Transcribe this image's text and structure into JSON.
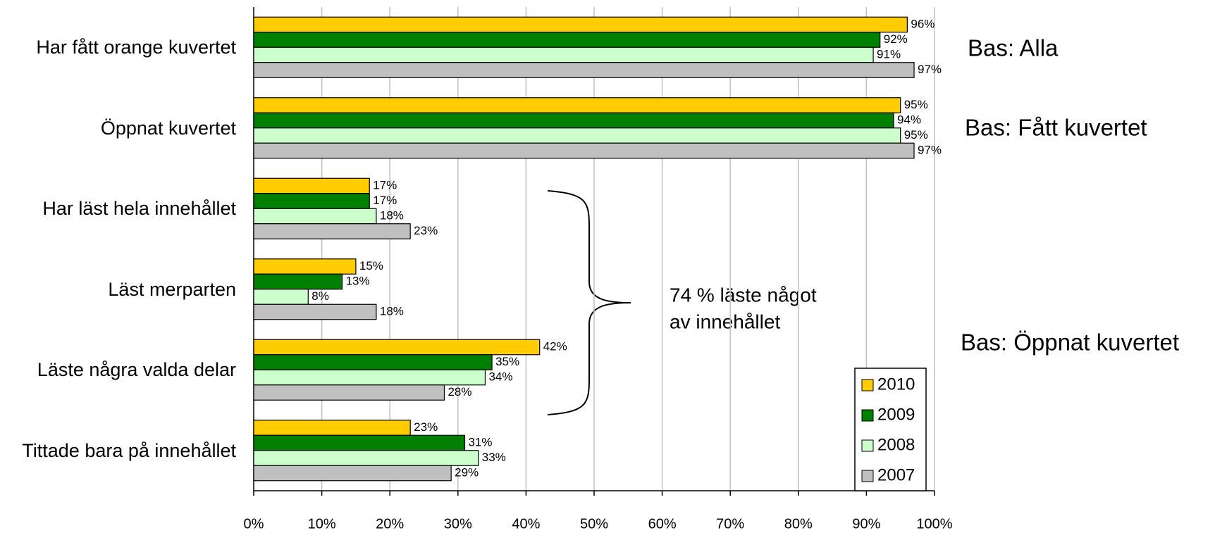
{
  "chart_data": {
    "type": "bar",
    "orientation": "horizontal",
    "categories": [
      "Har fått orange kuvertet",
      "Öppnat kuvertet",
      "Har läst hela innehållet",
      "Läst merparten",
      "Läste några valda delar",
      "Tittade bara på innehållet"
    ],
    "series": [
      {
        "name": "2010",
        "color": "#ffcc00",
        "values": [
          96,
          95,
          17,
          15,
          42,
          23
        ],
        "value_labels": [
          "96%",
          "95%",
          "17%",
          "15%",
          "42%",
          "23%"
        ]
      },
      {
        "name": "2009",
        "color": "#008000",
        "values": [
          92,
          94,
          17,
          13,
          35,
          31
        ],
        "value_labels": [
          "92%",
          "94%",
          "17%",
          "13%",
          "35%",
          "31%"
        ]
      },
      {
        "name": "2008",
        "color": "#ccffcc",
        "values": [
          91,
          95,
          18,
          8,
          34,
          33
        ],
        "value_labels": [
          "91%",
          "95%",
          "18%",
          "8%",
          "34%",
          "33%"
        ]
      },
      {
        "name": "2007",
        "color": "#c0c0c0",
        "values": [
          97,
          97,
          23,
          18,
          28,
          29
        ],
        "value_labels": [
          "97%",
          "97%",
          "23%",
          "18%",
          "28%",
          "29%"
        ]
      }
    ],
    "xlim": [
      0,
      100
    ],
    "xticks": [
      {
        "value": 0,
        "label": "0%"
      },
      {
        "value": 10,
        "label": "10%"
      },
      {
        "value": 20,
        "label": "20%"
      },
      {
        "value": 30,
        "label": "30%"
      },
      {
        "value": 40,
        "label": "40%"
      },
      {
        "value": 50,
        "label": "50%"
      },
      {
        "value": 60,
        "label": "60%"
      },
      {
        "value": 70,
        "label": "70%"
      },
      {
        "value": 80,
        "label": "80%"
      },
      {
        "value": 90,
        "label": "90%"
      },
      {
        "value": 100,
        "label": "100%"
      }
    ],
    "grid": true,
    "legend": "lower right",
    "annotations": [
      "Bas: Alla",
      "Bas: Fått kuvertet",
      "Bas: Öppnat kuvertet",
      "74 % läste något",
      "av innehållet"
    ]
  }
}
